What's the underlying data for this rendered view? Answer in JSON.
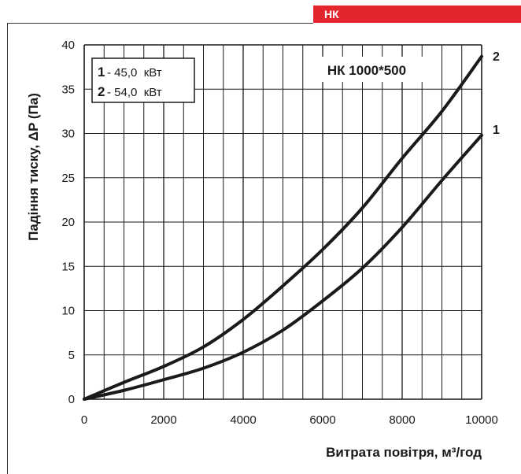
{
  "header": {
    "tag_label": "НК"
  },
  "chart_data": {
    "type": "line",
    "title": "НК 1000*500",
    "xlabel": "Витрата повітря, м³/год",
    "ylabel": "Падіння тиску, ΔP (Па)",
    "xlim": [
      0,
      10000
    ],
    "ylim": [
      0,
      40
    ],
    "x_tick_labels": [
      "0",
      "2000",
      "4000",
      "6000",
      "8000",
      "10000"
    ],
    "y_tick_labels": [
      "0",
      "5",
      "10",
      "15",
      "20",
      "25",
      "30",
      "35",
      "40"
    ],
    "grid": true,
    "legend": {
      "placement": "top-left",
      "entries": [
        {
          "num": "1",
          "text": "- 45,0  кВт"
        },
        {
          "num": "2",
          "text": "- 54,0  кВт"
        }
      ]
    },
    "series": [
      {
        "name": "1",
        "x": [
          0,
          1000,
          2000,
          3000,
          4000,
          5000,
          6000,
          7000,
          8000,
          9000,
          10000
        ],
        "y": [
          0,
          1.0,
          2.2,
          3.5,
          5.3,
          7.8,
          11.1,
          14.8,
          19.4,
          24.7,
          29.8
        ]
      },
      {
        "name": "2",
        "x": [
          0,
          1000,
          2000,
          3000,
          4000,
          5000,
          6000,
          7000,
          8000,
          9000,
          10000
        ],
        "y": [
          0,
          1.9,
          3.7,
          5.9,
          9.0,
          12.8,
          16.9,
          21.6,
          27.2,
          32.5,
          38.7
        ]
      }
    ],
    "colors": {
      "line": "#1a1a1a",
      "grid": "#1a1a1a",
      "tag": "#e3262d"
    }
  }
}
